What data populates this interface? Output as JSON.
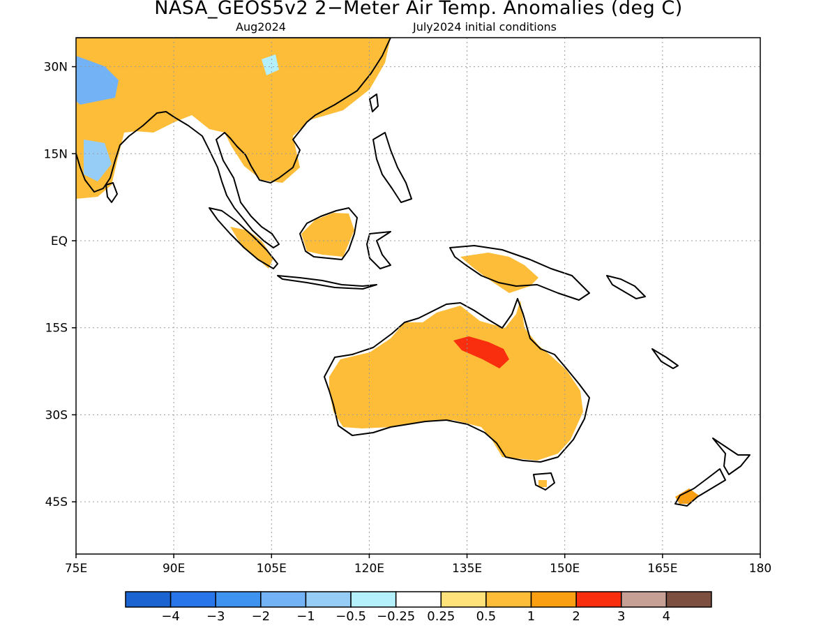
{
  "header": {
    "title": "NASA_GEOS5v2 2−Meter Air Temp. Anomalies (deg C)",
    "valid_month": "Aug2024",
    "init_conditions": "July2024 initial conditions"
  },
  "map": {
    "projection": "lat-lon",
    "lon_range": [
      75,
      180
    ],
    "lat_range": [
      -54,
      35
    ],
    "grid": "dotted",
    "lon_ticks": [
      {
        "value": 75,
        "label": "75E"
      },
      {
        "value": 90,
        "label": "90E"
      },
      {
        "value": 105,
        "label": "105E"
      },
      {
        "value": 120,
        "label": "120E"
      },
      {
        "value": 135,
        "label": "135E"
      },
      {
        "value": 150,
        "label": "150E"
      },
      {
        "value": 165,
        "label": "165E"
      },
      {
        "value": 180,
        "label": "180"
      }
    ],
    "lat_ticks": [
      {
        "value": 30,
        "label": "30N"
      },
      {
        "value": 15,
        "label": "15N"
      },
      {
        "value": 0,
        "label": "EQ"
      },
      {
        "value": -15,
        "label": "15S"
      },
      {
        "value": -30,
        "label": "30S"
      },
      {
        "value": -45,
        "label": "45S"
      }
    ]
  },
  "colorbar": {
    "colors": [
      "#1a63d0",
      "#2775e9",
      "#3f93f0",
      "#73b2f4",
      "#96cdf7",
      "#b4effc",
      "#ffffff",
      "#ffe27a",
      "#fdbd39",
      "#fb9f12",
      "#f92e0f",
      "#c7a095",
      "#7c4f41"
    ],
    "labels": [
      "−4",
      "−3",
      "−2",
      "−1",
      "−0.5",
      "−0.25",
      "0.25",
      "0.5",
      "1",
      "2",
      "3",
      "4"
    ]
  }
}
